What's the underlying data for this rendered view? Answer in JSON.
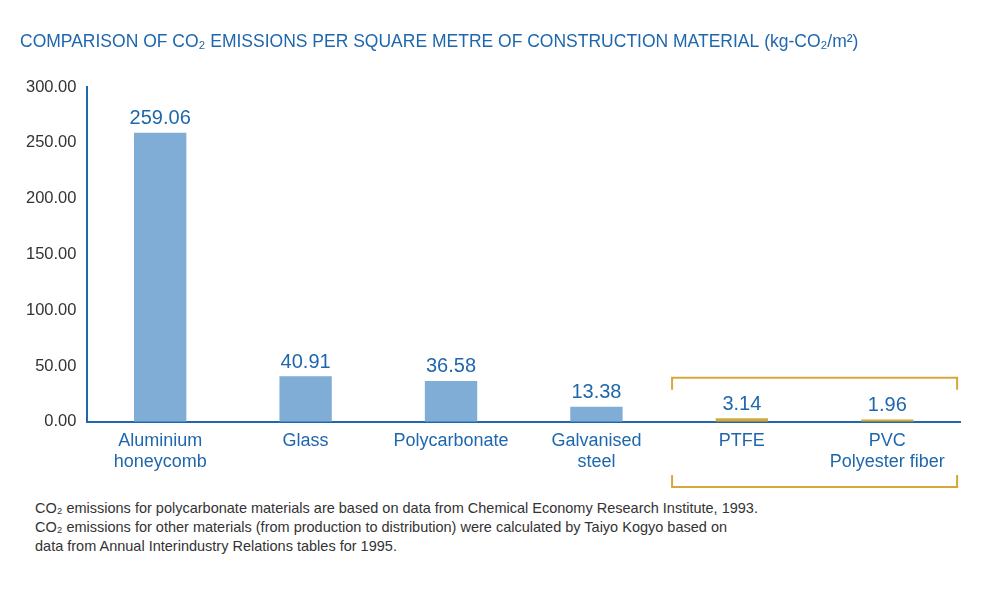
{
  "chart_data": {
    "type": "bar",
    "title": "COMPARISON OF CO₂ EMISSIONS PER SQUARE METRE OF CONSTRUCTION MATERIAL (kg-CO₂/m²)",
    "categories": [
      [
        "Aluminium",
        "honeycomb"
      ],
      "Glass",
      "Polycarbonate",
      [
        "Galvanised",
        "steel"
      ],
      "PTFE",
      [
        "PVC",
        "Polyester fiber"
      ]
    ],
    "values": [
      259.06,
      40.91,
      36.58,
      13.38,
      3.14,
      1.96
    ],
    "colors": [
      "#7fadd6",
      "#7fadd6",
      "#7fadd6",
      "#7fadd6",
      "#d6a83c",
      "#d6a83c"
    ],
    "ylim": [
      0,
      300
    ],
    "yticks": [
      {
        "value": 0,
        "label": "0.00"
      },
      {
        "value": 50,
        "label": "50.00"
      },
      {
        "value": 100,
        "label": "100.00"
      },
      {
        "value": 150,
        "label": "150.00"
      },
      {
        "value": 200,
        "label": "200.00"
      },
      {
        "value": 250,
        "label": "250.00"
      },
      {
        "value": 300,
        "label": "300.00"
      }
    ],
    "grid": false,
    "data_labels": true,
    "annotations": [
      "CO₂ emissions for polycarbonate materials are based on data from Chemical Economy Research Institute, 1993.",
      "CO₂ emissions for other materials (from production to distribution) were calculated by Taiyo Kogyo based on",
      "data from Annual Interindustry Relations tables for 1995."
    ]
  }
}
